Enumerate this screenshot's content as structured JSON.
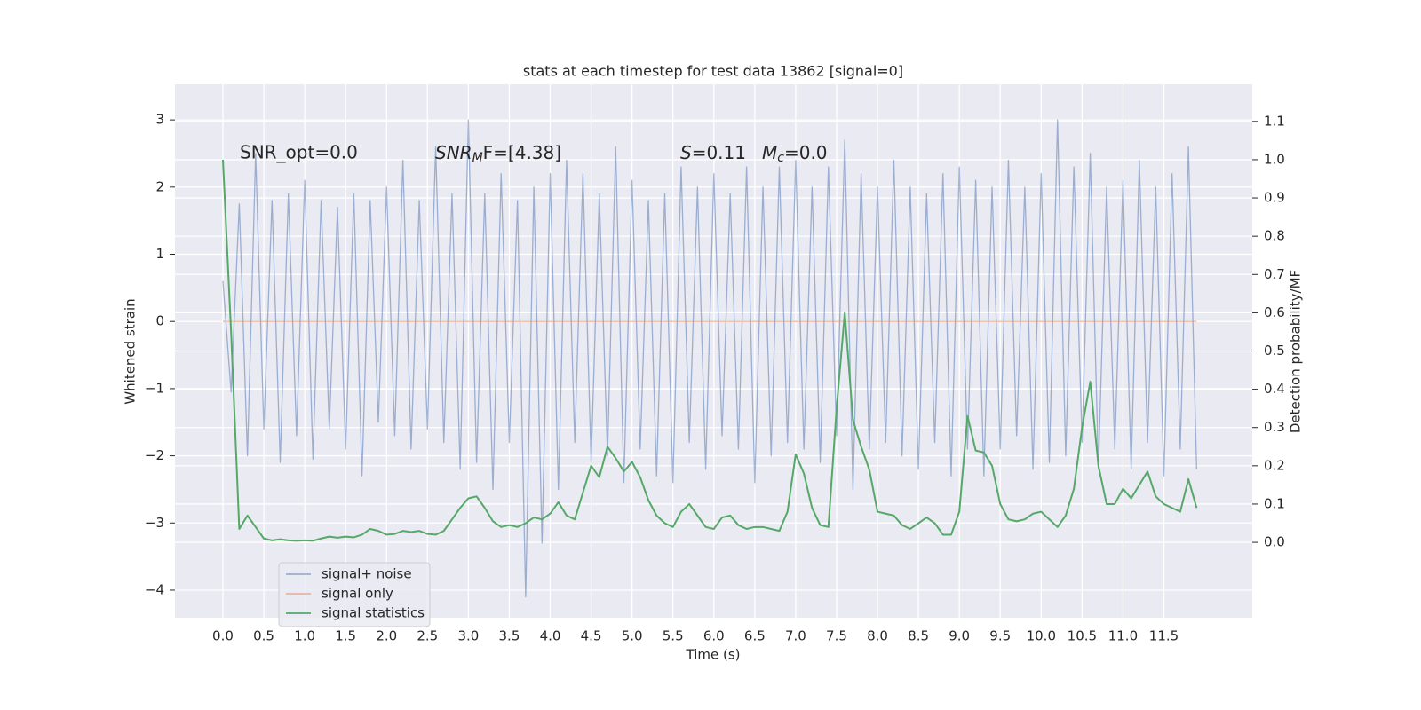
{
  "chart_data": {
    "type": "line",
    "title": "stats at each timestep for test data 13862 [signal=0]",
    "xlabel": "Time (s)",
    "ylabel": "Whitened strain",
    "y2label": "Detection probability/MF",
    "annotations": [
      "SNR_opt=0.0",
      {
        "base": "SNR",
        "sub": "M",
        "rest": "F=[4.38]"
      },
      {
        "base": "S",
        "rest": "=0.11"
      },
      {
        "base": "M",
        "sub": "c",
        "rest": "=0.0"
      }
    ],
    "grid": true,
    "legend": "lower left",
    "xlim": [
      -0.586,
      12.58
    ],
    "ylim": [
      -4.41,
      3.53
    ],
    "y2lim": [
      -0.197,
      1.197
    ],
    "xticks": [
      {
        "value": 0,
        "label": "0.0"
      },
      0.5,
      {
        "value": 1,
        "label": "1.0"
      },
      1.5,
      {
        "value": 2,
        "label": "2.0"
      },
      2.5,
      {
        "value": 3,
        "label": "3.0"
      },
      3.5,
      {
        "value": 4,
        "label": "4.0"
      },
      4.5,
      {
        "value": 5,
        "label": "5.0"
      },
      5.5,
      {
        "value": 6,
        "label": "6.0"
      },
      6.5,
      {
        "value": 7,
        "label": "7.0"
      },
      7.5,
      {
        "value": 8,
        "label": "8.0"
      },
      8.5,
      {
        "value": 9,
        "label": "9.0"
      },
      9.5,
      {
        "value": 10,
        "label": "10.0"
      },
      10.5,
      {
        "value": 11,
        "label": "11.0"
      },
      11.5
    ],
    "yticks": [
      {
        "value": -4,
        "label": "−4"
      },
      {
        "value": -3,
        "label": "−3"
      },
      {
        "value": -2,
        "label": "−2"
      },
      {
        "value": -1,
        "label": "−1"
      },
      0,
      1,
      2,
      3
    ],
    "y2ticks": [
      {
        "value": 0,
        "label": "0.0"
      },
      0.1,
      0.2,
      0.3,
      0.4,
      0.5,
      0.6,
      0.7,
      0.8,
      0.9,
      {
        "value": 1,
        "label": "1.0"
      },
      1.1
    ],
    "x": [
      0,
      0.1,
      0.2,
      0.3,
      0.4,
      0.5,
      0.6,
      0.7,
      0.8,
      0.9,
      1,
      1.1,
      1.2,
      1.3,
      1.4,
      1.5,
      1.6,
      1.7,
      1.8,
      1.9,
      2,
      2.1,
      2.2,
      2.3,
      2.4,
      2.5,
      2.6,
      2.7,
      2.8,
      2.9,
      3,
      3.1,
      3.2,
      3.3,
      3.4,
      3.5,
      3.6,
      3.7,
      3.8,
      3.9,
      4,
      4.1,
      4.2,
      4.3,
      4.4,
      4.5,
      4.6,
      4.7,
      4.8,
      4.9,
      5,
      5.1,
      5.2,
      5.3,
      5.4,
      5.5,
      5.6,
      5.7,
      5.8,
      5.9,
      6,
      6.1,
      6.2,
      6.3,
      6.4,
      6.5,
      6.6,
      6.7,
      6.8,
      6.9,
      7,
      7.1,
      7.2,
      7.3,
      7.4,
      7.5,
      7.6,
      7.7,
      7.8,
      7.9,
      8,
      8.1,
      8.2,
      8.3,
      8.4,
      8.5,
      8.6,
      8.7,
      8.8,
      8.9,
      9,
      9.1,
      9.2,
      9.3,
      9.4,
      9.5,
      9.6,
      9.7,
      9.8,
      9.9,
      10,
      10.1,
      10.2,
      10.3,
      10.4,
      10.5,
      10.6,
      10.7,
      10.8,
      10.9,
      11,
      11.1,
      11.2,
      11.3,
      11.4,
      11.5,
      11.6,
      11.7,
      11.8,
      11.9
    ],
    "series": [
      {
        "name": "signal+ noise",
        "color": "#4c72b0",
        "alpha": 0.5,
        "values": [
          0.6,
          -1.05,
          1.75,
          -2.0,
          2.5,
          -1.6,
          1.8,
          -2.1,
          1.9,
          -1.7,
          2.1,
          -2.05,
          1.8,
          -1.6,
          1.7,
          -1.9,
          1.9,
          -2.3,
          1.8,
          -1.5,
          2.0,
          -1.7,
          2.4,
          -1.9,
          1.8,
          -1.6,
          2.6,
          -1.8,
          1.9,
          -2.2,
          3.0,
          -2.1,
          1.9,
          -2.5,
          2.2,
          -1.8,
          1.8,
          -4.1,
          2.0,
          -3.3,
          2.2,
          -2.5,
          2.4,
          -1.8,
          2.2,
          -2.1,
          1.9,
          -2.0,
          2.6,
          -2.4,
          2.1,
          -1.9,
          1.8,
          -2.3,
          1.9,
          -2.4,
          2.3,
          -1.8,
          2.0,
          -2.2,
          2.2,
          -1.7,
          1.9,
          -1.9,
          2.3,
          -2.4,
          2.0,
          -2.0,
          2.3,
          -1.8,
          2.4,
          -1.9,
          2.0,
          -2.1,
          2.3,
          -1.7,
          2.7,
          -2.5,
          2.2,
          -1.9,
          2.0,
          -1.8,
          2.4,
          -2.0,
          2.0,
          -2.2,
          1.9,
          -1.8,
          2.2,
          -2.3,
          2.3,
          -1.9,
          2.1,
          -2.3,
          2.0,
          -1.9,
          2.4,
          -1.7,
          2.0,
          -2.2,
          2.2,
          -2.1,
          3.0,
          -2.0,
          2.3,
          -1.8,
          2.5,
          -2.2,
          2.0,
          -1.9,
          2.1,
          -2.2,
          2.4,
          -1.8,
          2.0,
          -2.3,
          2.2,
          -1.9,
          2.6,
          -2.2
        ]
      },
      {
        "name": "signal only",
        "color": "#dd8452",
        "alpha": 0.5,
        "values": [
          0,
          0,
          0,
          0,
          0,
          0,
          0,
          0,
          0,
          0,
          0,
          0,
          0,
          0,
          0,
          0,
          0,
          0,
          0,
          0,
          0,
          0,
          0,
          0,
          0,
          0,
          0,
          0,
          0,
          0,
          0,
          0,
          0,
          0,
          0,
          0,
          0,
          0,
          0,
          0,
          0,
          0,
          0,
          0,
          0,
          0,
          0,
          0,
          0,
          0,
          0,
          0,
          0,
          0,
          0,
          0,
          0,
          0,
          0,
          0,
          0,
          0,
          0,
          0,
          0,
          0,
          0,
          0,
          0,
          0,
          0,
          0,
          0,
          0,
          0,
          0,
          0,
          0,
          0,
          0,
          0,
          0,
          0,
          0,
          0,
          0,
          0,
          0,
          0,
          0,
          0,
          0,
          0,
          0,
          0,
          0,
          0,
          0,
          0,
          0,
          0,
          0,
          0,
          0,
          0,
          0,
          0,
          0,
          0,
          0,
          0,
          0,
          0,
          0,
          0,
          0,
          0,
          0,
          0,
          0
        ]
      },
      {
        "name": "signal statistics",
        "color": "#55a868",
        "alpha": 1,
        "axis": "y2",
        "values": [
          1.0,
          0.55,
          0.035,
          0.07,
          0.04,
          0.01,
          0.005,
          0.008,
          0.005,
          0.004,
          0.005,
          0.004,
          0.01,
          0.015,
          0.012,
          0.015,
          0.013,
          0.02,
          0.035,
          0.03,
          0.02,
          0.022,
          0.03,
          0.027,
          0.03,
          0.022,
          0.02,
          0.03,
          0.06,
          0.09,
          0.115,
          0.12,
          0.09,
          0.055,
          0.04,
          0.045,
          0.04,
          0.05,
          0.065,
          0.06,
          0.075,
          0.105,
          0.07,
          0.06,
          0.13,
          0.2,
          0.17,
          0.25,
          0.22,
          0.185,
          0.21,
          0.17,
          0.11,
          0.07,
          0.05,
          0.04,
          0.08,
          0.1,
          0.07,
          0.04,
          0.035,
          0.065,
          0.07,
          0.045,
          0.035,
          0.04,
          0.04,
          0.035,
          0.03,
          0.08,
          0.23,
          0.18,
          0.09,
          0.045,
          0.04,
          0.35,
          0.6,
          0.32,
          0.25,
          0.19,
          0.08,
          0.075,
          0.07,
          0.045,
          0.035,
          0.05,
          0.065,
          0.05,
          0.02,
          0.02,
          0.08,
          0.33,
          0.24,
          0.235,
          0.2,
          0.1,
          0.06,
          0.055,
          0.06,
          0.075,
          0.08,
          0.06,
          0.04,
          0.07,
          0.14,
          0.3,
          0.42,
          0.2,
          0.1,
          0.1,
          0.14,
          0.115,
          0.15,
          0.185,
          0.12,
          0.1,
          0.09,
          0.08,
          0.165,
          0.09
        ]
      }
    ]
  }
}
